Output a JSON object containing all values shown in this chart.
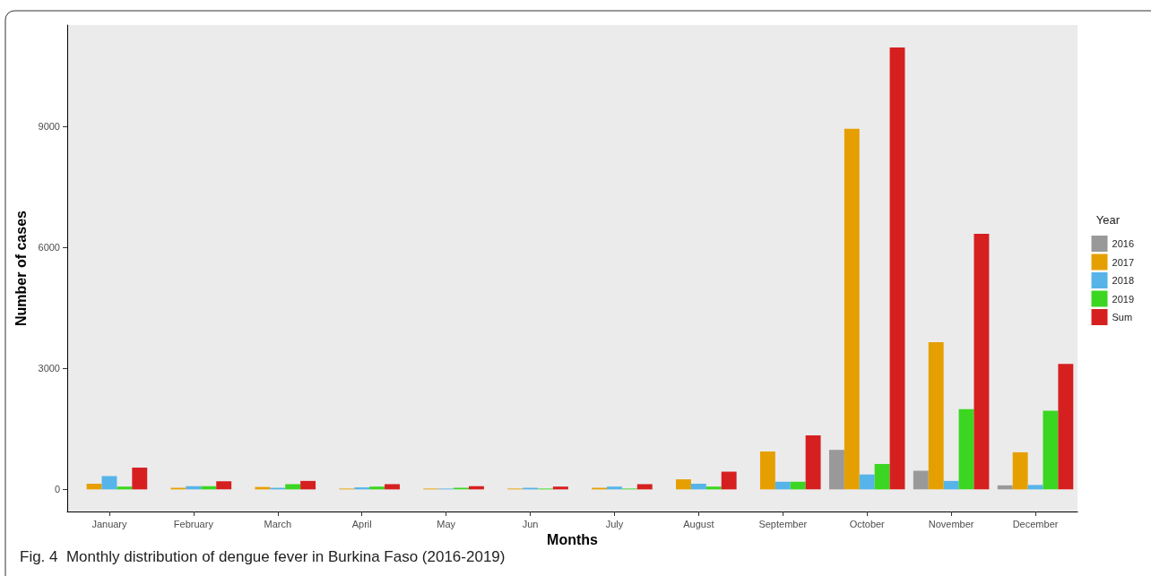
{
  "chart_data": {
    "type": "bar",
    "xlabel": "Months",
    "ylabel": "Number of cases",
    "legend_title": "Year",
    "legend": "right",
    "grid": false,
    "categories": [
      "January",
      "February",
      "March",
      "April",
      "May",
      "Jun",
      "July",
      "August",
      "September",
      "October",
      "November",
      "December"
    ],
    "ylim": [
      -548,
      11513
    ],
    "yticks": [
      0,
      3000,
      6000,
      9000
    ],
    "series": [
      {
        "name": "2016",
        "color": "#999999",
        "values": [
          0,
          0,
          0,
          0,
          0,
          0,
          0,
          0,
          0,
          980,
          460,
          100
        ]
      },
      {
        "name": "2017",
        "color": "#e69f00",
        "values": [
          140,
          40,
          60,
          20,
          20,
          20,
          40,
          250,
          940,
          8940,
          3650,
          920
        ]
      },
      {
        "name": "2018",
        "color": "#56b4e9",
        "values": [
          330,
          80,
          40,
          50,
          20,
          40,
          70,
          140,
          190,
          370,
          210,
          110
        ]
      },
      {
        "name": "2019",
        "color": "#3bd621",
        "values": [
          70,
          80,
          130,
          70,
          40,
          20,
          20,
          70,
          190,
          630,
          1990,
          1950
        ]
      },
      {
        "name": "Sum",
        "color": "#d62020",
        "values": [
          540,
          200,
          210,
          130,
          80,
          70,
          130,
          440,
          1340,
          10960,
          6340,
          3110
        ]
      }
    ],
    "annotations": [
      "Fig. 4  Monthly distribution of dengue fever in Burkina Faso (2016-2019)"
    ]
  }
}
